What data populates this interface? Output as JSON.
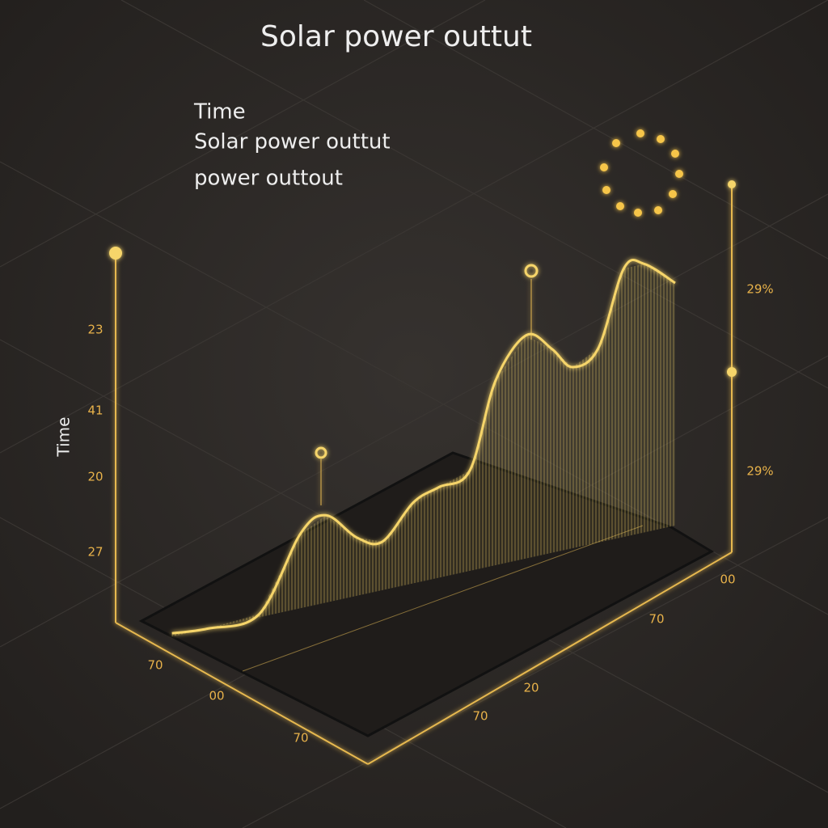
{
  "chart_data": {
    "type": "area",
    "title": "Solar power outtut",
    "legend_lines": [
      "Time",
      "Solar power outtut",
      "power outtout"
    ],
    "y_label": "Time",
    "y_axis_labels": [
      "23",
      "41",
      "20",
      "27"
    ],
    "y2_axis_labels": [
      "29%",
      "29%"
    ],
    "x_axis_labels": [
      "70",
      "00",
      "70",
      "00",
      "70",
      "20",
      "70"
    ],
    "x": [
      2,
      9,
      19,
      27,
      32,
      38,
      43,
      49,
      54,
      60,
      65,
      71,
      76,
      80,
      85,
      90,
      94,
      100
    ],
    "values": [
      1,
      0,
      1,
      23,
      27,
      18,
      15,
      25,
      28,
      31,
      57,
      69,
      63,
      56,
      60,
      83,
      83,
      75
    ],
    "xlim": [
      0,
      100
    ],
    "ylim": [
      0,
      100
    ],
    "color": "#f6d56b"
  }
}
